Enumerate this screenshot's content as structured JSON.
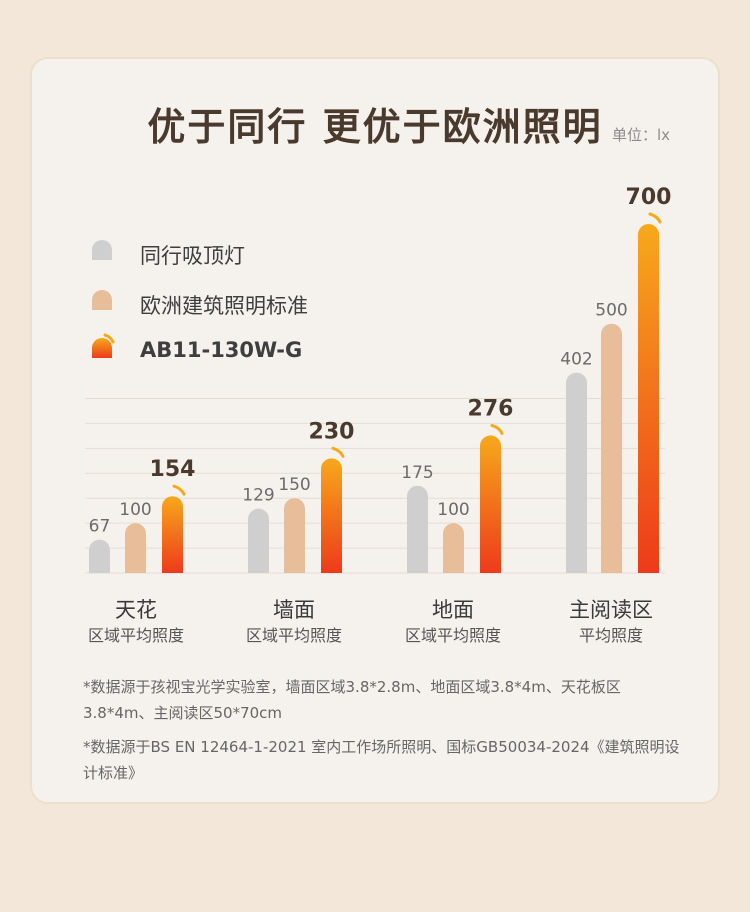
{
  "header": {
    "title": "优于同行  更优于欧洲照明",
    "unit": "单位：lx"
  },
  "colors": {
    "gray_bar": "#cfcfcf",
    "beige_bar": "#e8bd99",
    "accent_top": "#f6a91b",
    "accent_bottom": "#ee3a1b",
    "text_dark": "#4a3a2e"
  },
  "legend": [
    {
      "label": "同行吸顶灯",
      "icon": "gray-bar-icon"
    },
    {
      "label": "欧洲建筑照明标准",
      "icon": "beige-bar-icon"
    },
    {
      "label": "AB11-130W-G",
      "icon": "gradient-bar-icon"
    }
  ],
  "chart_data": {
    "type": "bar",
    "title": "优于同行  更优于欧洲照明",
    "ylabel": "单位：lx",
    "ylim": [
      0,
      700
    ],
    "grid": true,
    "legend_position": "top-left",
    "categories": [
      {
        "name": "天花",
        "sub": "区域平均照度"
      },
      {
        "name": "墙面",
        "sub": "区域平均照度"
      },
      {
        "name": "地面",
        "sub": "区域平均照度"
      },
      {
        "name": "主阅读区",
        "sub": "平均照度"
      }
    ],
    "series": [
      {
        "name": "同行吸顶灯",
        "values": [
          67,
          129,
          175,
          402
        ]
      },
      {
        "name": "欧洲建筑照明标准",
        "values": [
          100,
          150,
          100,
          500
        ]
      },
      {
        "name": "AB11-130W-G",
        "values": [
          154,
          230,
          276,
          700
        ]
      }
    ]
  },
  "footnotes": [
    "*数据源于孩视宝光学实验室，墙面区域3.8*2.8m、地面区域3.8*4m、天花板区3.8*4m、主阅读区50*70cm",
    "*数据源于BS EN 12464-1-2021  室内工作场所照明、国标GB50034-2024《建筑照明设计标准》"
  ]
}
